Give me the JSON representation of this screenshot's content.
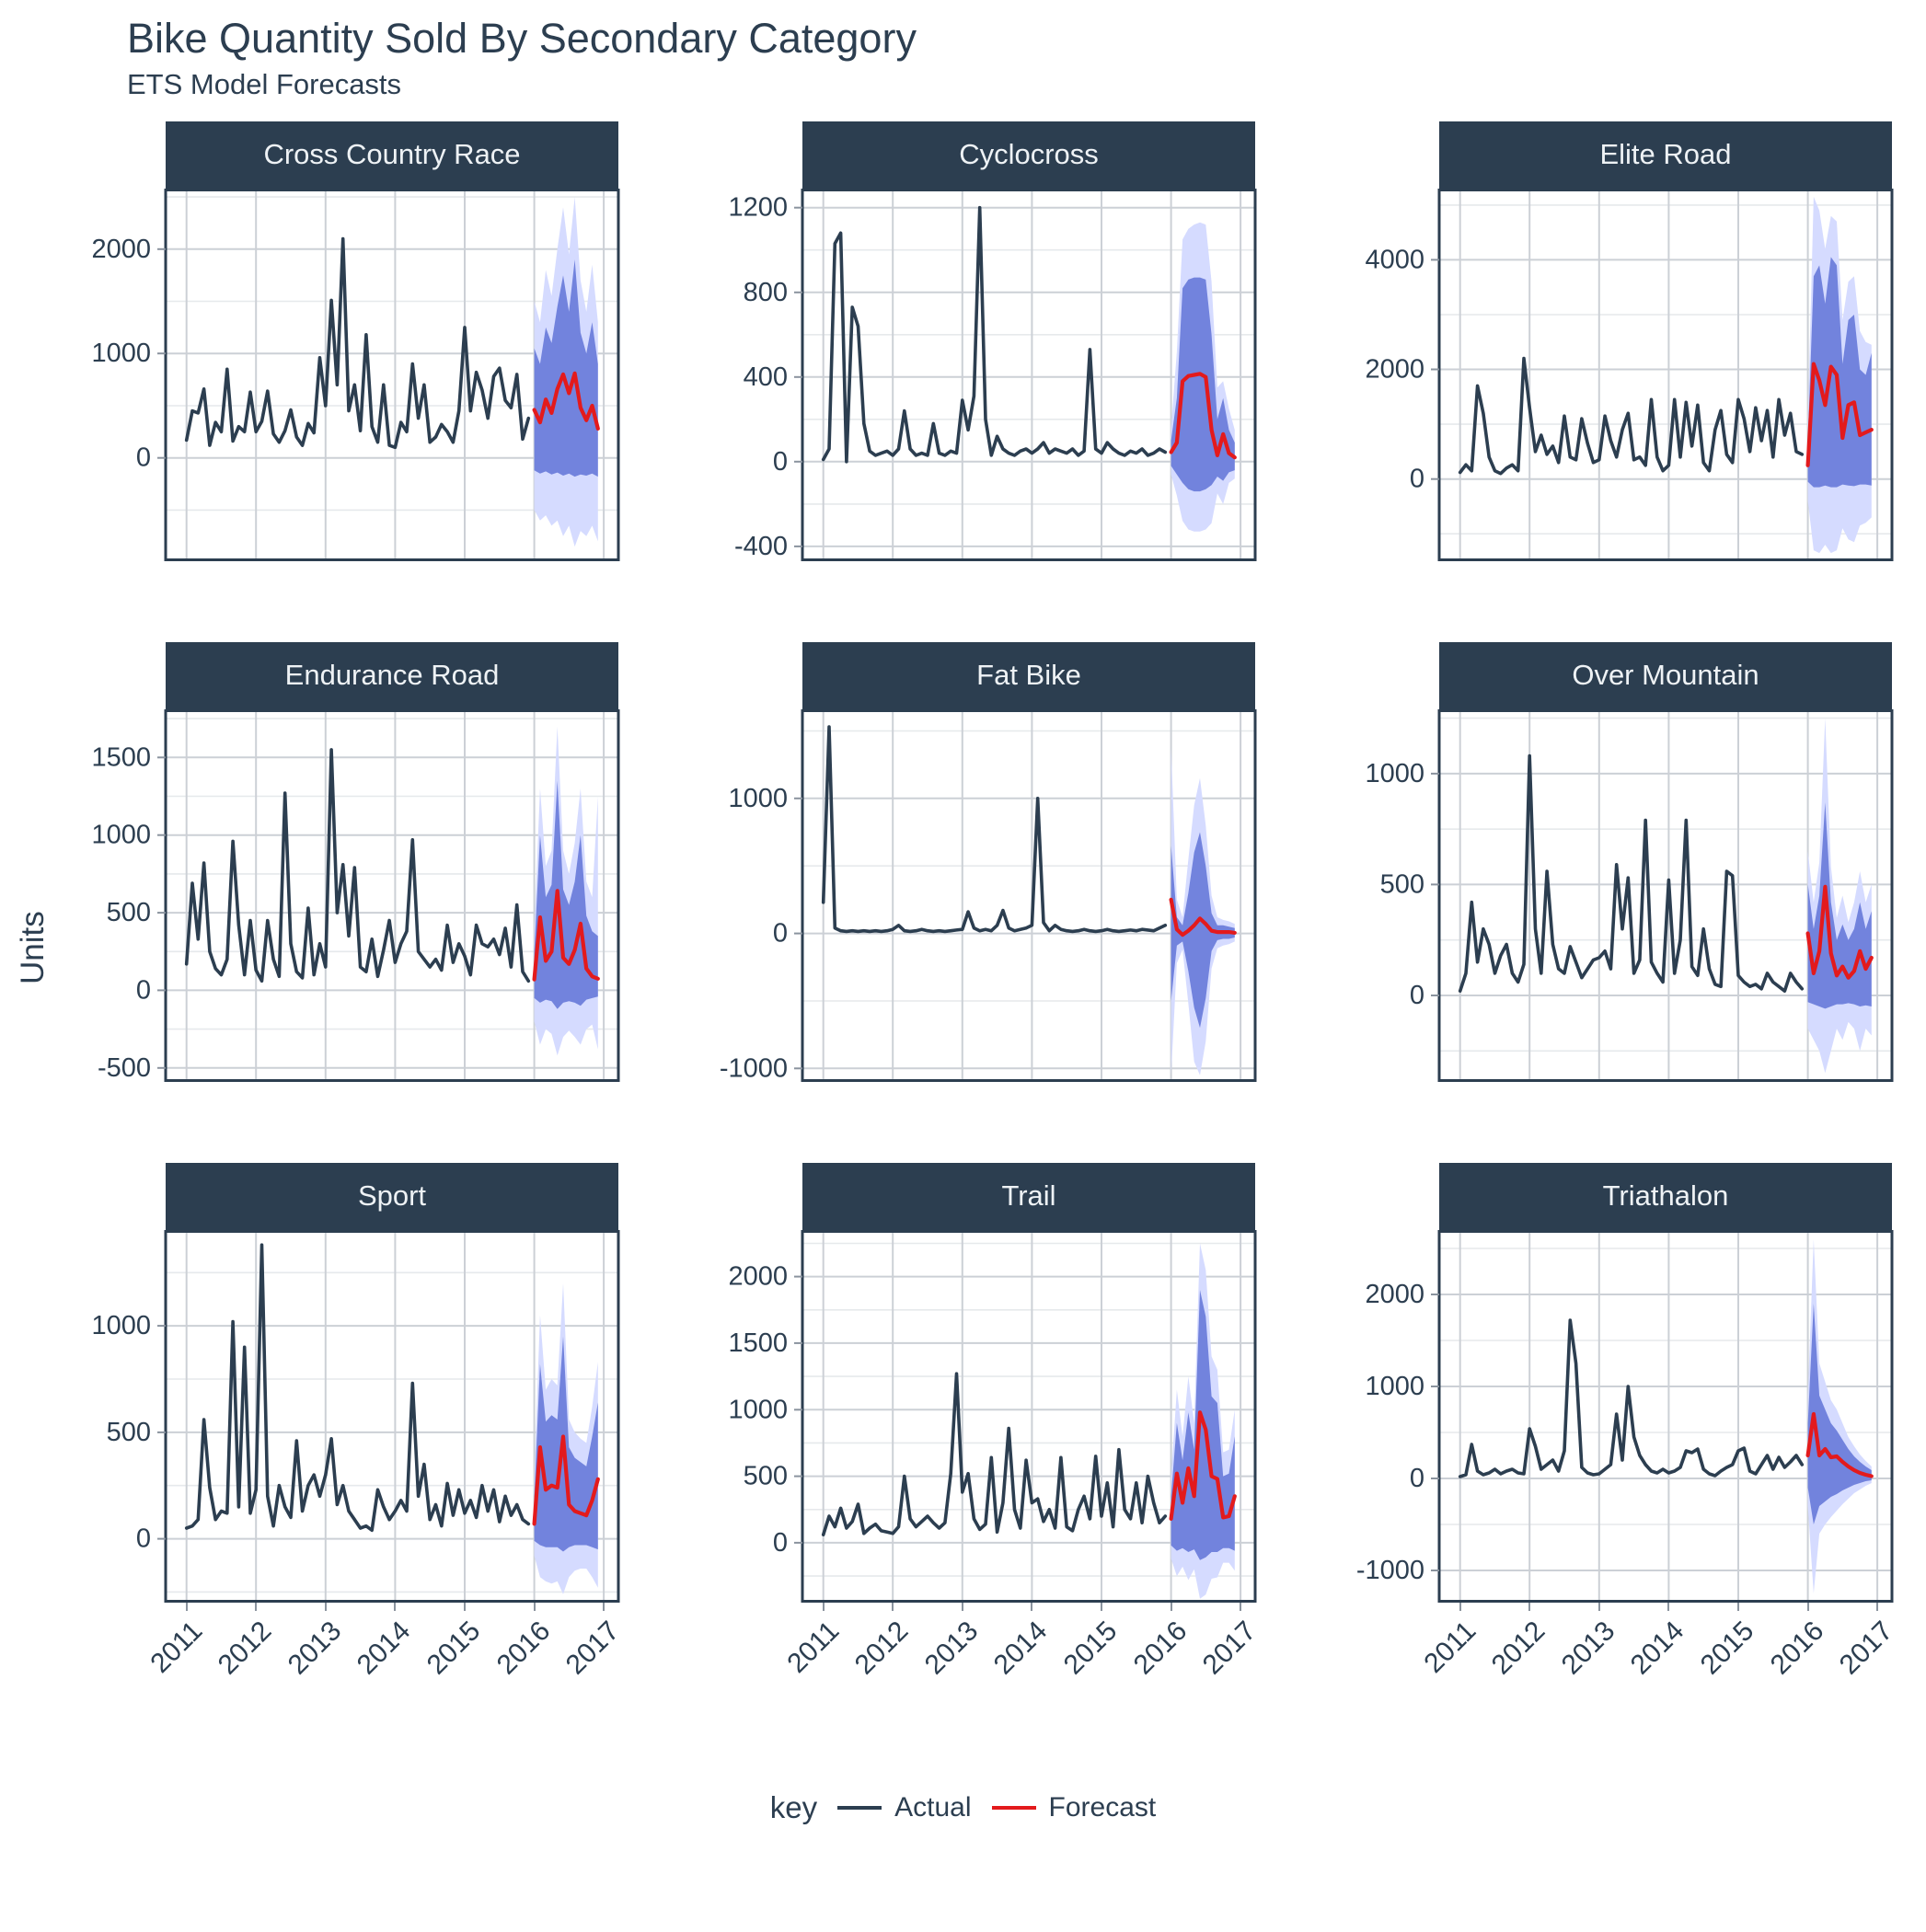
{
  "title": "Bike Quantity Sold By Secondary Category",
  "subtitle": "ETS Model Forecasts",
  "y_axis_label": "Units",
  "x_ticks": [
    2011,
    2012,
    2013,
    2014,
    2015,
    2016,
    2017
  ],
  "x_domain": [
    2010.7,
    2017.21
  ],
  "legend": {
    "label": "key",
    "items": [
      {
        "label": "Actual",
        "color": "#2c3e50"
      },
      {
        "label": "Forecast",
        "color": "#e31a1c"
      }
    ]
  },
  "colors": {
    "actual": "#2c3e50",
    "forecast": "#e31a1c",
    "ribbon95": "#D5DBFF",
    "ribbon80": "#596DD5",
    "ribbon80_opacity": 0.8,
    "strip_bg": "#2c3e50",
    "strip_text": "#eef2f5",
    "grid_major": "#ccd0d6",
    "grid_minor": "#e6e9ec",
    "panel_border": "#2c3e50",
    "text": "#2c3e50"
  },
  "chart_data": [
    {
      "name": "Cross Country Race",
      "type": "line",
      "x_unit": "month",
      "actual_start": "2011-01",
      "forecast_start": "2016-01",
      "y_ticks": [
        0,
        1000,
        2000
      ],
      "ylim": [
        -990,
        2580
      ],
      "actual": [
        170,
        450,
        430,
        660,
        120,
        340,
        250,
        850,
        160,
        300,
        250,
        630,
        250,
        350,
        640,
        230,
        150,
        260,
        460,
        200,
        120,
        330,
        240,
        960,
        500,
        1510,
        700,
        2100,
        450,
        700,
        260,
        1180,
        300,
        150,
        700,
        120,
        100,
        340,
        250,
        900,
        380,
        700,
        150,
        200,
        320,
        250,
        150,
        450,
        1250,
        450,
        820,
        650,
        380,
        780,
        860,
        550,
        480,
        800,
        180,
        380
      ],
      "forecast": [
        460,
        340,
        560,
        430,
        660,
        800,
        620,
        810,
        480,
        360,
        500,
        280
      ],
      "hi80": [
        1050,
        900,
        1250,
        1100,
        1450,
        1750,
        1400,
        1900,
        1200,
        1000,
        1300,
        900
      ],
      "lo80": [
        -120,
        -150,
        -130,
        -160,
        -140,
        -170,
        -150,
        -180,
        -160,
        -170,
        -150,
        -180
      ],
      "hi95": [
        1500,
        1300,
        1800,
        1550,
        2000,
        2400,
        1950,
        2500,
        1700,
        1400,
        1850,
        1300
      ],
      "lo95": [
        -500,
        -600,
        -550,
        -650,
        -600,
        -750,
        -650,
        -850,
        -700,
        -750,
        -650,
        -800
      ]
    },
    {
      "name": "Cyclocross",
      "type": "line",
      "x_unit": "month",
      "actual_start": "2011-01",
      "forecast_start": "2016-01",
      "y_ticks": [
        -400,
        0,
        400,
        800,
        1200
      ],
      "ylim": [
        -470,
        1290
      ],
      "actual": [
        10,
        60,
        1030,
        1080,
        0,
        730,
        640,
        180,
        50,
        30,
        40,
        50,
        30,
        60,
        240,
        60,
        30,
        40,
        30,
        180,
        40,
        30,
        50,
        40,
        290,
        150,
        310,
        1200,
        200,
        30,
        120,
        60,
        40,
        30,
        50,
        60,
        40,
        60,
        90,
        40,
        60,
        50,
        40,
        60,
        30,
        50,
        530,
        60,
        40,
        90,
        60,
        40,
        30,
        50,
        40,
        60,
        30,
        40,
        60,
        45
      ],
      "forecast": [
        45,
        90,
        380,
        405,
        410,
        415,
        400,
        150,
        30,
        130,
        40,
        20
      ],
      "hi80": [
        100,
        300,
        820,
        860,
        870,
        870,
        860,
        600,
        200,
        300,
        150,
        90
      ],
      "lo80": [
        -20,
        -60,
        -100,
        -130,
        -140,
        -140,
        -130,
        -110,
        -70,
        -90,
        -50,
        -40
      ],
      "hi95": [
        160,
        520,
        1050,
        1100,
        1120,
        1130,
        1120,
        850,
        350,
        380,
        250,
        150
      ],
      "lo95": [
        -60,
        -160,
        -280,
        -320,
        -330,
        -330,
        -320,
        -290,
        -150,
        -200,
        -100,
        -80
      ]
    },
    {
      "name": "Elite Road",
      "type": "line",
      "x_unit": "month",
      "actual_start": "2011-01",
      "forecast_start": "2016-01",
      "y_ticks": [
        0,
        2000,
        4000
      ],
      "ylim": [
        -1500,
        5300
      ],
      "actual": [
        120,
        260,
        150,
        1700,
        1200,
        400,
        150,
        100,
        200,
        260,
        150,
        2200,
        1300,
        500,
        800,
        450,
        600,
        300,
        1150,
        400,
        350,
        1100,
        650,
        300,
        350,
        1150,
        700,
        400,
        900,
        1200,
        350,
        400,
        250,
        1450,
        400,
        150,
        250,
        1450,
        400,
        1400,
        600,
        1350,
        300,
        150,
        900,
        1250,
        450,
        300,
        1450,
        1100,
        500,
        1300,
        700,
        1250,
        400,
        1450,
        800,
        1200,
        500,
        450
      ],
      "forecast": [
        250,
        2100,
        1800,
        1350,
        2050,
        1900,
        750,
        1350,
        1400,
        800,
        850,
        900
      ],
      "hi80": [
        700,
        3700,
        3900,
        3200,
        4050,
        3900,
        2100,
        2900,
        3000,
        2000,
        1900,
        2300
      ],
      "lo80": [
        -50,
        -150,
        -150,
        -120,
        -150,
        -150,
        -100,
        -120,
        -130,
        -100,
        -100,
        -120
      ],
      "hi95": [
        1100,
        5150,
        4900,
        4200,
        4800,
        4700,
        2900,
        3600,
        3700,
        2700,
        2500,
        2450
      ],
      "lo95": [
        -400,
        -1300,
        -1350,
        -1200,
        -1350,
        -1300,
        -900,
        -1100,
        -1150,
        -850,
        -800,
        -700
      ]
    },
    {
      "name": "Endurance Road",
      "type": "line",
      "x_unit": "month",
      "actual_start": "2011-01",
      "forecast_start": "2016-01",
      "y_ticks": [
        -500,
        0,
        500,
        1000,
        1500
      ],
      "ylim": [
        -590,
        1810
      ],
      "actual": [
        170,
        690,
        330,
        820,
        250,
        140,
        100,
        200,
        960,
        420,
        100,
        450,
        130,
        60,
        450,
        200,
        90,
        1270,
        300,
        120,
        80,
        530,
        100,
        300,
        150,
        1550,
        500,
        810,
        350,
        790,
        150,
        120,
        330,
        90,
        260,
        450,
        180,
        300,
        380,
        970,
        250,
        200,
        150,
        200,
        130,
        420,
        180,
        300,
        220,
        100,
        420,
        300,
        280,
        330,
        230,
        400,
        150,
        550,
        120,
        60
      ],
      "forecast": [
        70,
        470,
        190,
        250,
        640,
        210,
        170,
        260,
        430,
        140,
        90,
        75
      ],
      "hi80": [
        250,
        1000,
        600,
        680,
        1350,
        650,
        550,
        700,
        1000,
        480,
        380,
        350
      ],
      "lo80": [
        -50,
        -80,
        -60,
        -70,
        -120,
        -80,
        -70,
        -80,
        -100,
        -60,
        -50,
        -40
      ],
      "hi95": [
        400,
        1300,
        800,
        900,
        1700,
        900,
        750,
        950,
        1300,
        700,
        600,
        1250
      ],
      "lo95": [
        -200,
        -350,
        -250,
        -280,
        -420,
        -300,
        -260,
        -300,
        -350,
        -250,
        -220,
        -380
      ]
    },
    {
      "name": "Fat Bike",
      "type": "line",
      "x_unit": "month",
      "actual_start": "2011-01",
      "forecast_start": "2016-01",
      "y_ticks": [
        -1000,
        0,
        1000
      ],
      "ylim": [
        -1100,
        1660
      ],
      "actual": [
        230,
        1530,
        40,
        20,
        15,
        20,
        15,
        20,
        15,
        20,
        15,
        20,
        30,
        60,
        20,
        15,
        20,
        30,
        20,
        15,
        20,
        15,
        20,
        25,
        30,
        160,
        40,
        20,
        30,
        20,
        60,
        170,
        40,
        20,
        30,
        40,
        60,
        1000,
        80,
        20,
        60,
        30,
        20,
        15,
        20,
        30,
        20,
        15,
        20,
        30,
        20,
        15,
        20,
        25,
        20,
        30,
        25,
        20,
        40,
        60
      ],
      "forecast": [
        250,
        30,
        -10,
        20,
        60,
        110,
        70,
        20,
        10,
        10,
        10,
        5
      ],
      "hi80": [
        650,
        120,
        60,
        300,
        600,
        750,
        500,
        150,
        60,
        60,
        50,
        40
      ],
      "lo80": [
        -500,
        -90,
        -60,
        -280,
        -550,
        -700,
        -480,
        -130,
        -50,
        -40,
        -40,
        -30
      ],
      "hi95": [
        1380,
        250,
        120,
        550,
        950,
        1150,
        800,
        280,
        120,
        100,
        90,
        70
      ],
      "lo95": [
        -1050,
        -220,
        -120,
        -520,
        -950,
        -1050,
        -800,
        -260,
        -110,
        -90,
        -80,
        -60
      ]
    },
    {
      "name": "Over Mountain",
      "type": "line",
      "x_unit": "month",
      "actual_start": "2011-01",
      "forecast_start": "2016-01",
      "y_ticks": [
        0,
        500,
        1000
      ],
      "ylim": [
        -390,
        1290
      ],
      "actual": [
        20,
        100,
        420,
        150,
        300,
        230,
        100,
        180,
        230,
        100,
        60,
        140,
        1080,
        300,
        100,
        560,
        230,
        120,
        100,
        220,
        150,
        80,
        120,
        160,
        170,
        200,
        120,
        590,
        300,
        530,
        100,
        160,
        790,
        150,
        100,
        60,
        520,
        100,
        250,
        790,
        130,
        90,
        300,
        120,
        50,
        40,
        560,
        540,
        90,
        60,
        40,
        50,
        30,
        100,
        60,
        40,
        20,
        100,
        60,
        30
      ],
      "forecast": [
        280,
        100,
        200,
        490,
        190,
        90,
        130,
        80,
        110,
        200,
        120,
        170
      ],
      "hi80": [
        500,
        300,
        450,
        870,
        420,
        250,
        320,
        250,
        300,
        420,
        300,
        380
      ],
      "lo80": [
        -30,
        -40,
        -50,
        -60,
        -50,
        -40,
        -40,
        -35,
        -40,
        -50,
        -45,
        -50
      ],
      "hi95": [
        650,
        420,
        600,
        1250,
        580,
        350,
        450,
        330,
        420,
        560,
        420,
        500
      ],
      "lo95": [
        -150,
        -200,
        -250,
        -350,
        -250,
        -150,
        -200,
        -120,
        -150,
        -250,
        -150,
        -180
      ]
    },
    {
      "name": "Sport",
      "type": "line",
      "x_unit": "month",
      "actual_start": "2011-01",
      "forecast_start": "2016-01",
      "y_ticks": [
        0,
        500,
        1000
      ],
      "ylim": [
        -300,
        1450
      ],
      "actual": [
        50,
        60,
        90,
        560,
        240,
        90,
        130,
        120,
        1020,
        150,
        900,
        120,
        230,
        1380,
        200,
        60,
        250,
        150,
        100,
        460,
        130,
        250,
        300,
        200,
        300,
        470,
        160,
        250,
        130,
        90,
        50,
        60,
        40,
        230,
        150,
        90,
        130,
        180,
        130,
        730,
        200,
        350,
        90,
        160,
        60,
        260,
        110,
        230,
        120,
        180,
        100,
        250,
        130,
        230,
        80,
        200,
        110,
        160,
        90,
        70
      ],
      "forecast": [
        70,
        430,
        230,
        250,
        240,
        480,
        160,
        130,
        120,
        110,
        180,
        280
      ],
      "hi80": [
        200,
        820,
        550,
        580,
        560,
        950,
        430,
        380,
        360,
        340,
        480,
        640
      ],
      "lo80": [
        -10,
        -30,
        -40,
        -40,
        -40,
        -60,
        -40,
        -30,
        -30,
        -30,
        -40,
        -50
      ],
      "hi95": [
        300,
        1050,
        700,
        750,
        720,
        1200,
        560,
        500,
        470,
        450,
        620,
        830
      ],
      "lo95": [
        -80,
        -180,
        -200,
        -210,
        -200,
        -260,
        -180,
        -150,
        -140,
        -140,
        -180,
        -230
      ]
    },
    {
      "name": "Trail",
      "type": "line",
      "x_unit": "month",
      "actual_start": "2011-01",
      "forecast_start": "2016-01",
      "y_ticks": [
        0,
        500,
        1000,
        1500,
        2000
      ],
      "ylim": [
        -450,
        2350
      ],
      "actual": [
        60,
        200,
        120,
        260,
        110,
        160,
        290,
        70,
        110,
        140,
        90,
        80,
        70,
        120,
        500,
        180,
        120,
        160,
        200,
        150,
        110,
        150,
        520,
        1270,
        380,
        520,
        180,
        100,
        140,
        640,
        80,
        300,
        860,
        250,
        110,
        620,
        300,
        330,
        160,
        250,
        110,
        640,
        120,
        90,
        250,
        350,
        180,
        650,
        200,
        450,
        120,
        700,
        250,
        180,
        450,
        150,
        500,
        300,
        150,
        200
      ],
      "forecast": [
        180,
        520,
        300,
        560,
        350,
        980,
        850,
        500,
        480,
        190,
        200,
        350
      ],
      "hi80": [
        350,
        900,
        620,
        980,
        700,
        1900,
        1700,
        1100,
        1050,
        500,
        520,
        800
      ],
      "lo80": [
        -20,
        -60,
        -40,
        -70,
        -50,
        -130,
        -110,
        -70,
        -70,
        -40,
        -40,
        -60
      ],
      "hi95": [
        500,
        1150,
        800,
        1250,
        900,
        2250,
        2050,
        1400,
        1300,
        680,
        700,
        1000
      ],
      "lo95": [
        -120,
        -250,
        -180,
        -280,
        -200,
        -420,
        -390,
        -270,
        -260,
        -150,
        -150,
        -210
      ]
    },
    {
      "name": "Triathalon",
      "type": "line",
      "x_unit": "month",
      "actual_start": "2011-01",
      "forecast_start": "2016-01",
      "y_ticks": [
        -1000,
        0,
        1000,
        2000
      ],
      "ylim": [
        -1350,
        2700
      ],
      "actual": [
        20,
        40,
        370,
        80,
        40,
        60,
        100,
        50,
        80,
        100,
        60,
        50,
        540,
        350,
        100,
        150,
        200,
        80,
        300,
        1720,
        1250,
        120,
        60,
        40,
        50,
        100,
        150,
        700,
        200,
        1000,
        450,
        250,
        150,
        80,
        60,
        100,
        60,
        80,
        120,
        300,
        280,
        320,
        100,
        50,
        30,
        80,
        120,
        150,
        300,
        330,
        80,
        50,
        150,
        250,
        100,
        230,
        120,
        180,
        250,
        150
      ],
      "forecast": [
        250,
        700,
        250,
        320,
        230,
        240,
        180,
        130,
        90,
        60,
        40,
        25
      ],
      "hi80": [
        600,
        1900,
        900,
        750,
        600,
        520,
        420,
        320,
        240,
        180,
        130,
        90
      ],
      "lo80": [
        -100,
        -500,
        -300,
        -250,
        -200,
        -170,
        -130,
        -100,
        -70,
        -50,
        -30,
        -20
      ],
      "hi95": [
        900,
        2600,
        1250,
        1050,
        850,
        750,
        600,
        450,
        350,
        260,
        190,
        130
      ],
      "lo95": [
        -300,
        -1250,
        -600,
        -500,
        -420,
        -350,
        -280,
        -220,
        -160,
        -120,
        -80,
        -50
      ]
    }
  ]
}
